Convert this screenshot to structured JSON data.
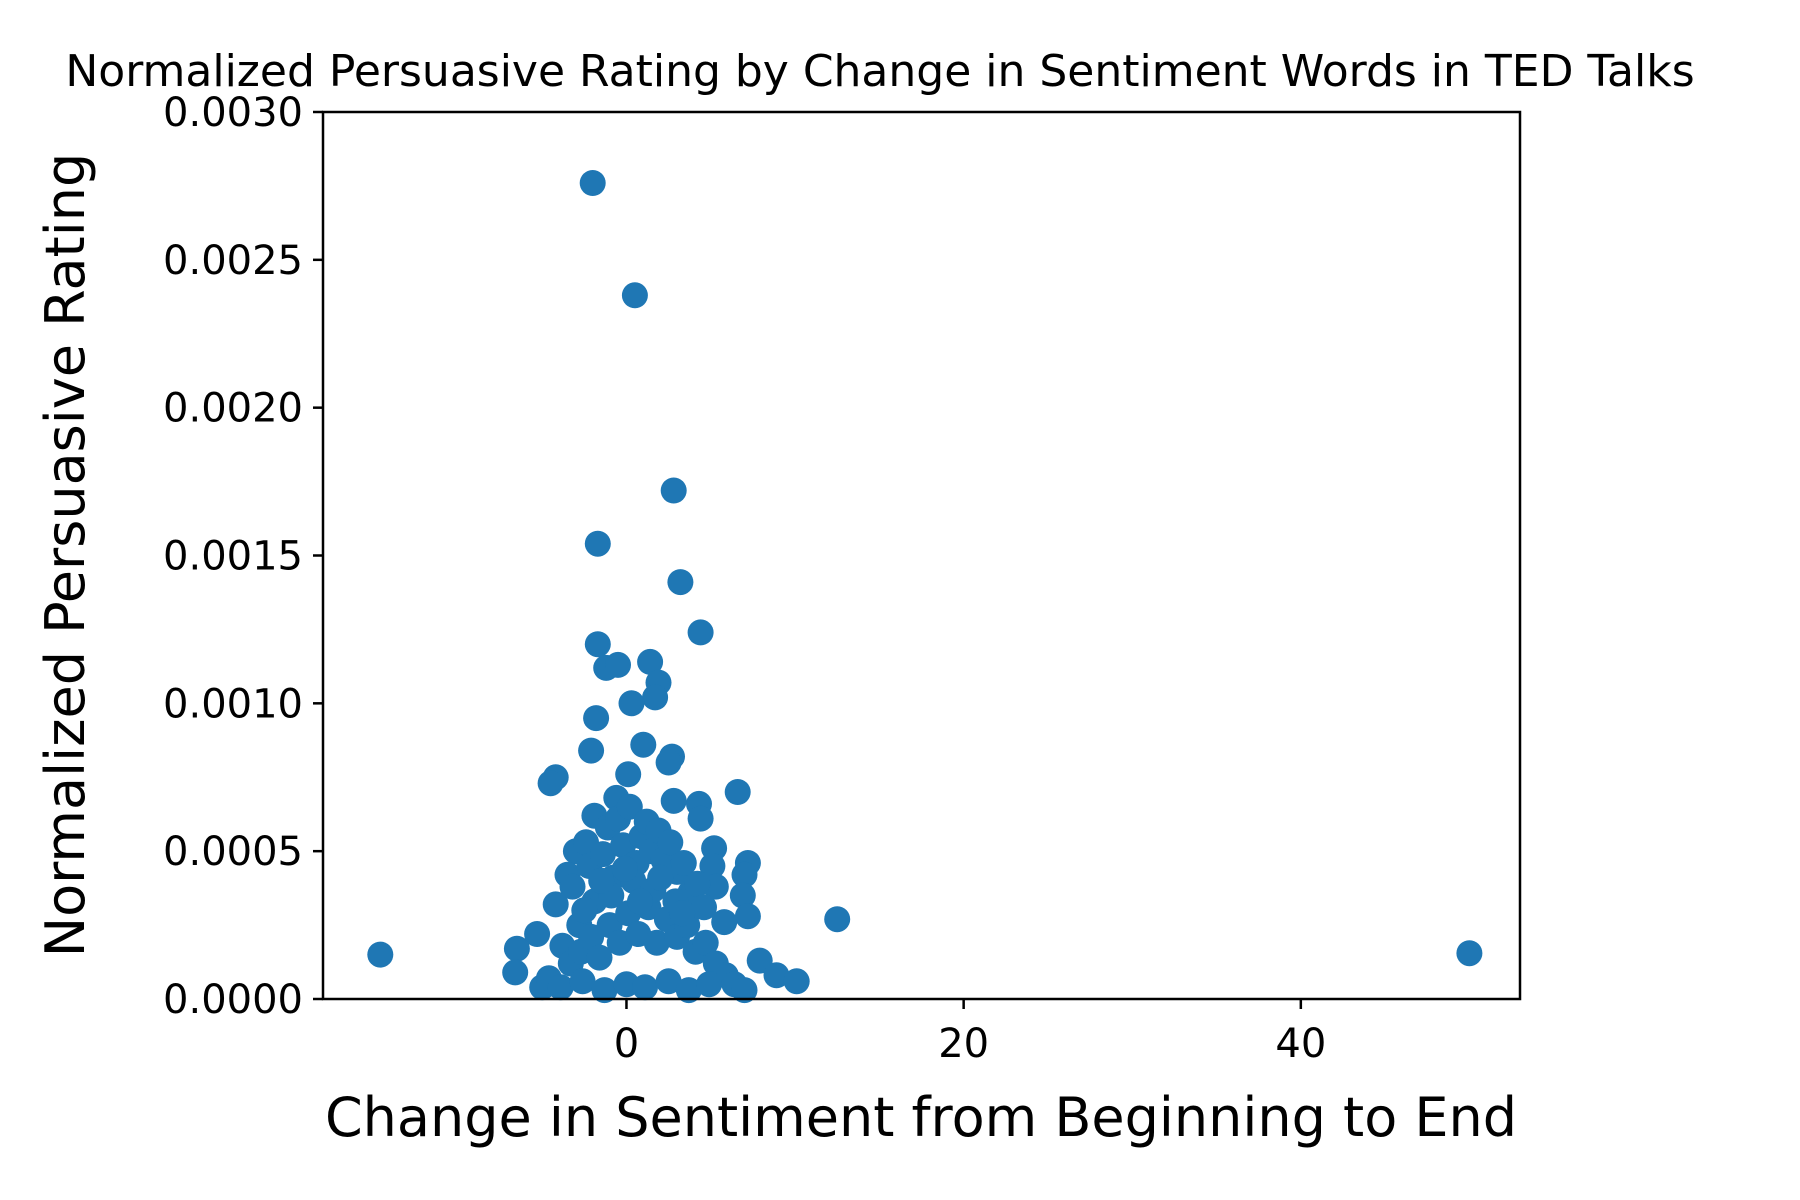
{
  "chart_data": {
    "type": "scatter",
    "title": "Normalized Persuasive Rating by Change in Sentiment Words in TED Talks",
    "xlabel": "Change in Sentiment from Beginning to End",
    "ylabel": "Normalized Persuasive Rating",
    "xlim": [
      -18,
      53
    ],
    "ylim": [
      0,
      0.003
    ],
    "x_ticks": [
      {
        "value": 0,
        "label": "0"
      },
      {
        "value": 20,
        "label": "20"
      },
      {
        "value": 40,
        "label": "40"
      }
    ],
    "y_ticks": [
      {
        "value": 0,
        "label": "0.0000"
      },
      {
        "value": 0.0005,
        "label": "0.0005"
      },
      {
        "value": 0.001,
        "label": "0.0010"
      },
      {
        "value": 0.0015,
        "label": "0.0015"
      },
      {
        "value": 0.002,
        "label": "0.0020"
      },
      {
        "value": 0.0025,
        "label": "0.0025"
      },
      {
        "value": 0.003,
        "label": "0.0030"
      }
    ],
    "grid": false,
    "marker_color": "#1f77b4",
    "series": [
      {
        "points": [
          [
            -2,
            0.00276
          ],
          [
            0.5,
            0.00238
          ],
          [
            2.8,
            0.00172
          ],
          [
            -1.7,
            0.00154
          ],
          [
            3.2,
            0.00141
          ],
          [
            4.4,
            0.00124
          ],
          [
            -1.7,
            0.0012
          ],
          [
            -1.2,
            0.00112
          ],
          [
            -0.5,
            0.00113
          ],
          [
            1.4,
            0.00114
          ],
          [
            1.9,
            0.00107
          ],
          [
            1.7,
            0.00102
          ],
          [
            0.3,
            0.001
          ],
          [
            -1.8,
            0.00095
          ],
          [
            -2.1,
            0.00084
          ],
          [
            1,
            0.00086
          ],
          [
            2.7,
            0.00082
          ],
          [
            2.5,
            0.0008
          ],
          [
            0.1,
            0.00076
          ],
          [
            -4.2,
            0.00075
          ],
          [
            -4.5,
            0.00073
          ],
          [
            6.6,
            0.0007
          ],
          [
            4.3,
            0.00066
          ],
          [
            2.8,
            0.00067
          ],
          [
            -0.6,
            0.00068
          ],
          [
            4.4,
            0.00061
          ],
          [
            -1.9,
            0.00062
          ],
          [
            5.2,
            0.00051
          ],
          [
            7.2,
            0.00046
          ],
          [
            5.1,
            0.00045
          ],
          [
            7,
            0.00042
          ],
          [
            5.3,
            0.00038
          ],
          [
            6.9,
            0.00035
          ],
          [
            7.2,
            0.00028
          ],
          [
            12.5,
            0.00027
          ],
          [
            5.8,
            0.00026
          ],
          [
            -5.3,
            0.00022
          ],
          [
            -6.5,
            0.00017
          ],
          [
            -14.6,
            0.00015
          ],
          [
            50,
            0.000155
          ],
          [
            -6.6,
            9e-05
          ],
          [
            7.9,
            0.00013
          ],
          [
            8.9,
            8e-05
          ],
          [
            10.1,
            6e-05
          ],
          [
            -5,
            4e-05
          ],
          [
            -3,
            0.0005
          ],
          [
            -4.2,
            0.00032
          ],
          [
            -3.5,
            0.00042
          ],
          [
            -3.2,
            0.00038
          ],
          [
            -2.4,
            0.00053
          ],
          [
            -2.8,
            0.00025
          ],
          [
            -2.2,
            0.00045
          ],
          [
            -1.9,
            0.00033
          ],
          [
            -1.4,
            0.00049
          ],
          [
            -1.1,
            0.00058
          ],
          [
            -0.8,
            0.00041
          ],
          [
            -0.5,
            0.00061
          ],
          [
            -0.2,
            0.00052
          ],
          [
            0.2,
            0.00065
          ],
          [
            0.6,
            0.00046
          ],
          [
            0.9,
            0.00055
          ],
          [
            1.2,
            0.0006
          ],
          [
            1.5,
            0.0005
          ],
          [
            1.9,
            0.00057
          ],
          [
            2.2,
            0.00047
          ],
          [
            2.6,
            0.00053
          ],
          [
            3,
            0.00043
          ],
          [
            3.4,
            0.00046
          ],
          [
            3.8,
            0.00036
          ],
          [
            4.2,
            0.00039
          ],
          [
            4.6,
            0.00031
          ],
          [
            -3.8,
            0.00018
          ],
          [
            -3.3,
            0.00012
          ],
          [
            -2.7,
            0.00016
          ],
          [
            -2.1,
            0.00021
          ],
          [
            -1.6,
            0.00014
          ],
          [
            -1,
            0.00025
          ],
          [
            -0.4,
            0.00019
          ],
          [
            0.1,
            0.00029
          ],
          [
            0.7,
            0.00022
          ],
          [
            1.3,
            0.00031
          ],
          [
            1.8,
            0.00019
          ],
          [
            2.4,
            0.00027
          ],
          [
            3,
            0.00021
          ],
          [
            3.6,
            0.00025
          ],
          [
            4.1,
            0.00016
          ],
          [
            4.7,
            0.00019
          ],
          [
            5.3,
            0.00012
          ],
          [
            5.9,
            8e-05
          ],
          [
            6.4,
            5e-05
          ],
          [
            7,
            3e-05
          ],
          [
            -4.6,
            7e-05
          ],
          [
            -3.9,
            4e-05
          ],
          [
            -2.6,
            6e-05
          ],
          [
            -1.3,
            3e-05
          ],
          [
            0,
            5e-05
          ],
          [
            1.1,
            4e-05
          ],
          [
            2.5,
            6e-05
          ],
          [
            3.7,
            3e-05
          ],
          [
            4.9,
            5e-05
          ],
          [
            -0.9,
            0.00035
          ],
          [
            0.4,
            0.0004
          ],
          [
            1.6,
            0.00037
          ],
          [
            2.9,
            0.00033
          ],
          [
            -2.5,
            0.0003
          ],
          [
            -1.5,
            0.0004
          ],
          [
            0.8,
            0.00033
          ],
          [
            2,
            0.00041
          ],
          [
            3.3,
            0.00029
          ],
          [
            -0.1,
            0.00044
          ]
        ]
      }
    ]
  }
}
